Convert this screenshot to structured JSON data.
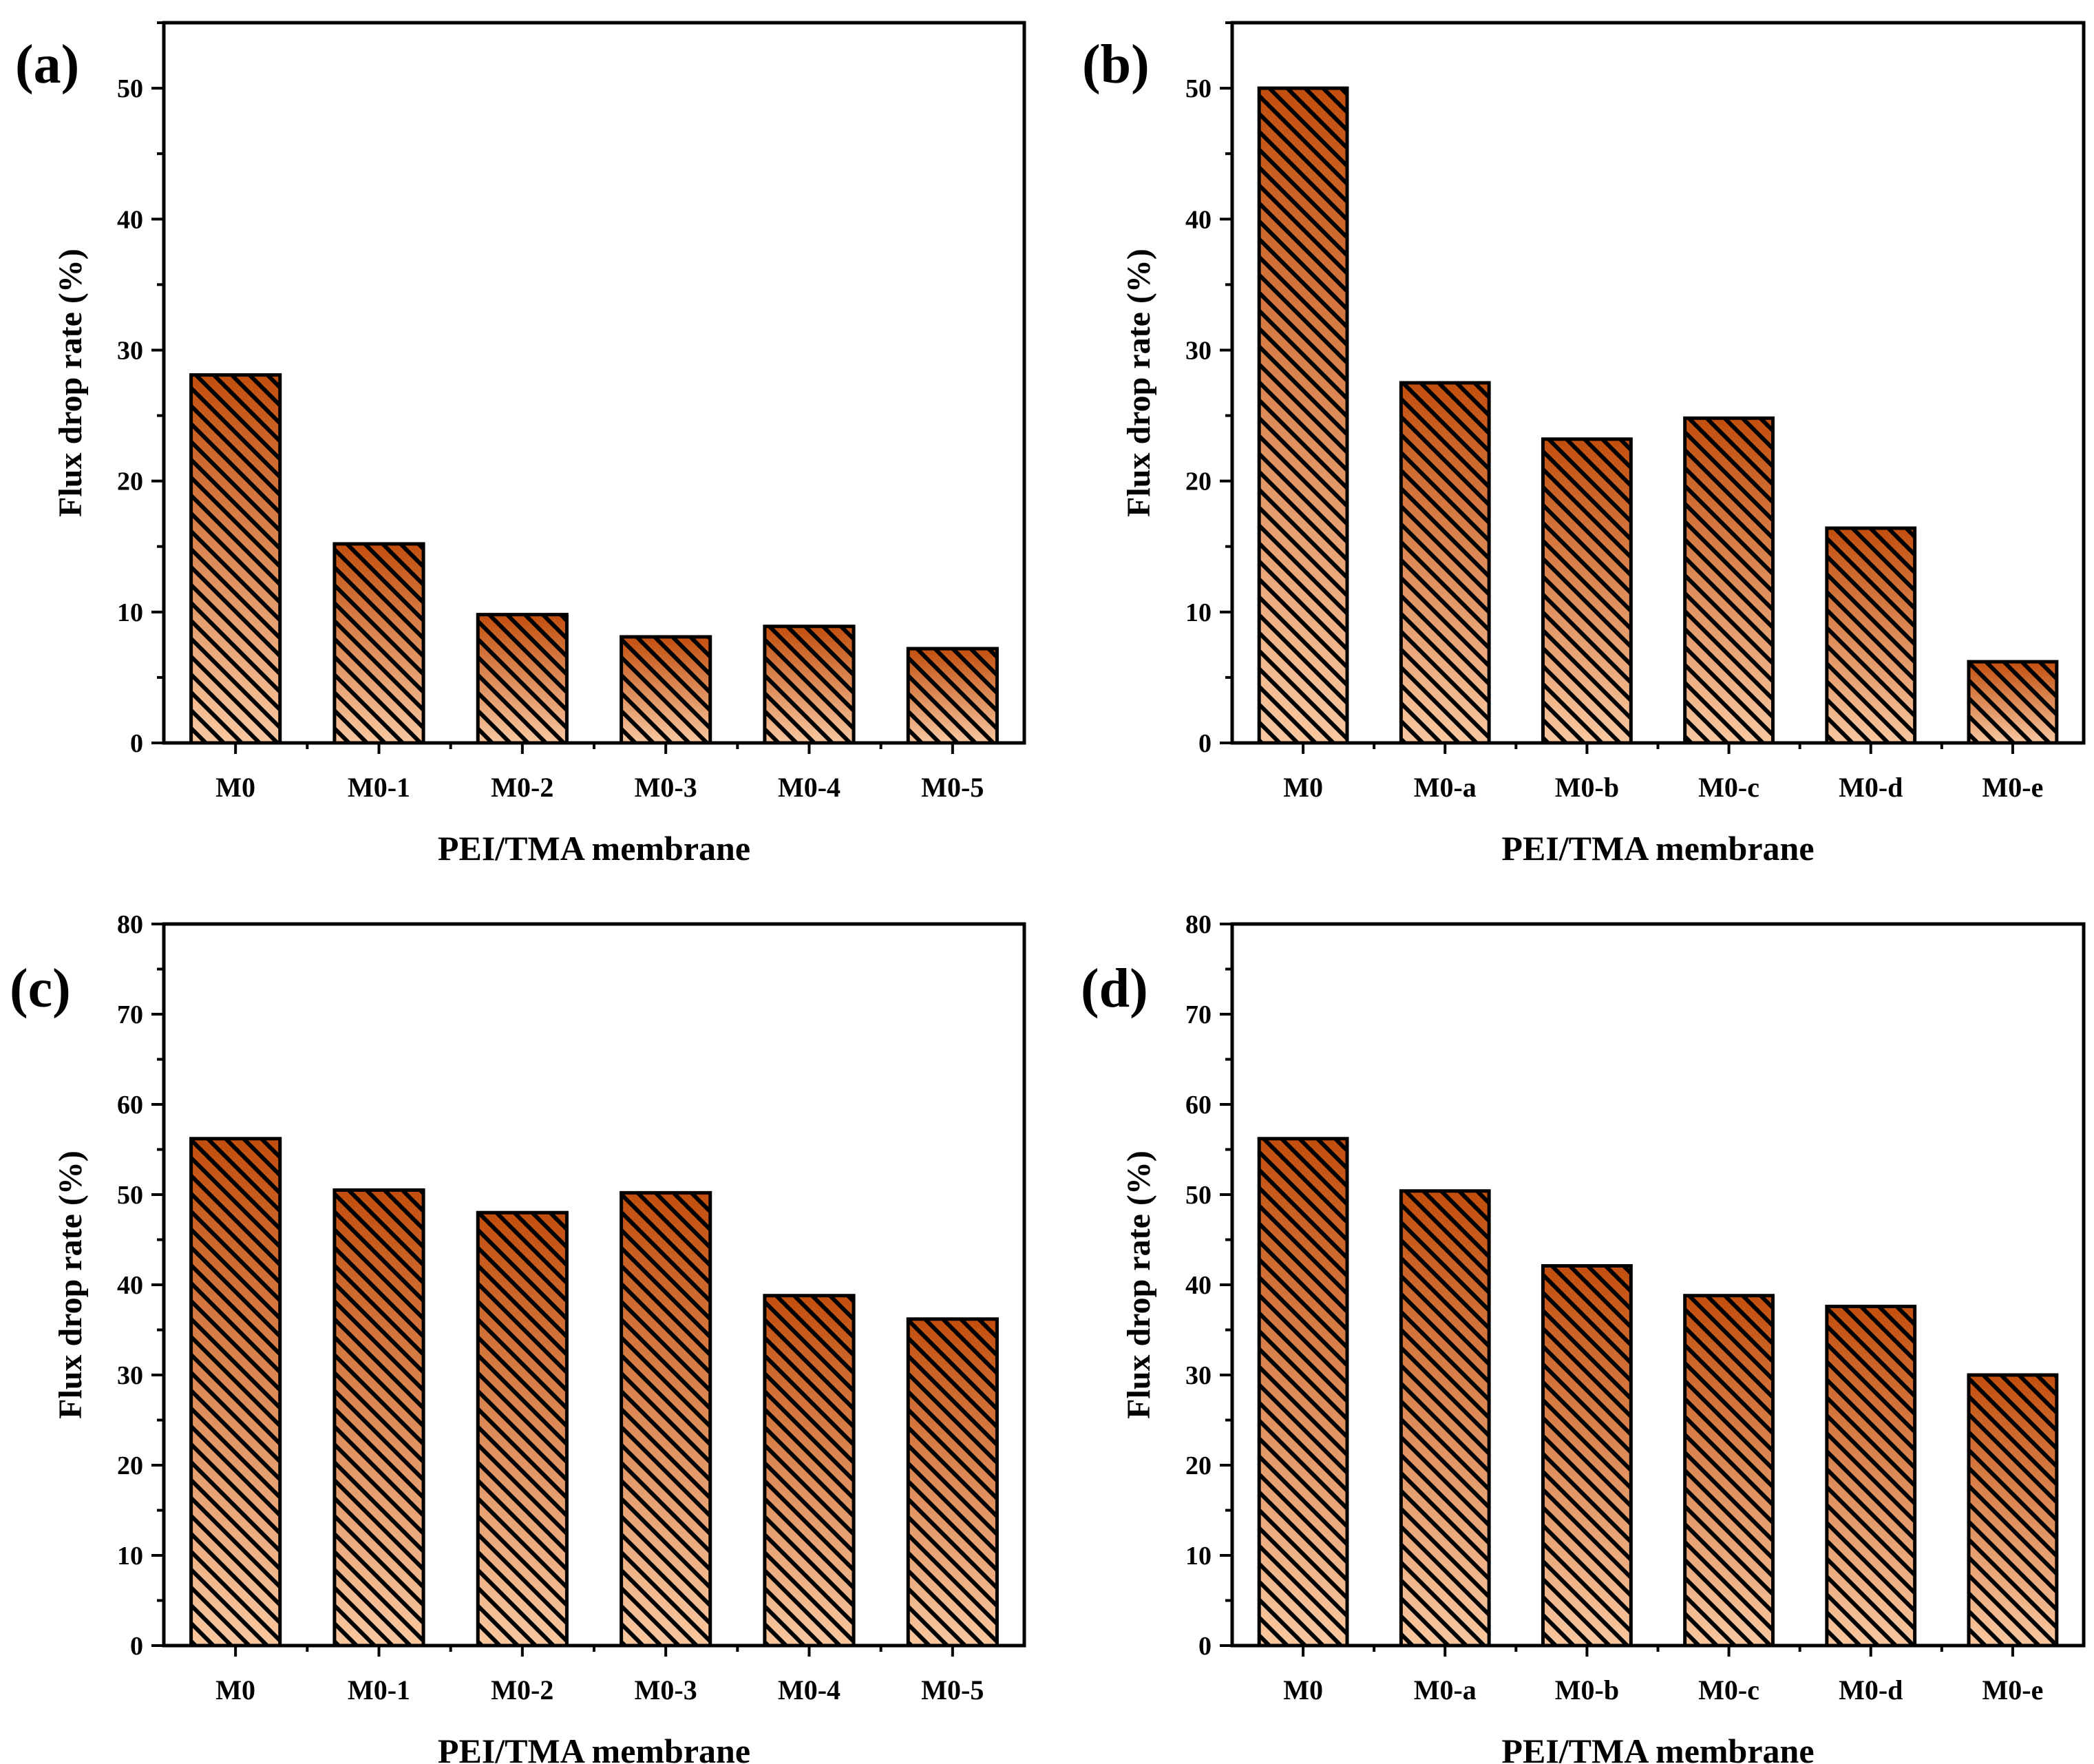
{
  "chart_data": [
    {
      "type": "bar",
      "panel_label": "(a)",
      "categories": [
        "M0",
        "M0-1",
        "M0-2",
        "M0-3",
        "M0-4",
        "M0-5"
      ],
      "values": [
        28.1,
        15.2,
        9.8,
        8.1,
        8.9,
        7.2
      ],
      "xlabel": "PEI/TMA membrane",
      "ylabel": "Flux drop rate (%)",
      "ylim": [
        0,
        55
      ],
      "yticks": [
        0,
        10,
        20,
        30,
        40,
        50
      ]
    },
    {
      "type": "bar",
      "panel_label": "(b)",
      "categories": [
        "M0",
        "M0-a",
        "M0-b",
        "M0-c",
        "M0-d",
        "M0-e"
      ],
      "values": [
        50.0,
        27.5,
        23.2,
        24.8,
        16.4,
        6.2
      ],
      "xlabel": "PEI/TMA membrane",
      "ylabel": "Flux drop rate (%)",
      "ylim": [
        0,
        55
      ],
      "yticks": [
        0,
        10,
        20,
        30,
        40,
        50
      ]
    },
    {
      "type": "bar",
      "panel_label": "(c)",
      "categories": [
        "M0",
        "M0-1",
        "M0-2",
        "M0-3",
        "M0-4",
        "M0-5"
      ],
      "values": [
        56.2,
        50.5,
        48.0,
        50.2,
        38.8,
        36.2
      ],
      "xlabel": "PEI/TMA membrane",
      "ylabel": "Flux drop rate (%)",
      "ylim": [
        0,
        80
      ],
      "yticks": [
        0,
        10,
        20,
        30,
        40,
        50,
        60,
        70,
        80
      ]
    },
    {
      "type": "bar",
      "panel_label": "(d)",
      "categories": [
        "M0",
        "M0-a",
        "M0-b",
        "M0-c",
        "M0-d",
        "M0-e"
      ],
      "values": [
        56.2,
        50.4,
        42.1,
        38.8,
        37.6,
        30.0
      ],
      "xlabel": "PEI/TMA membrane",
      "ylabel": "Flux drop rate (%)",
      "ylim": [
        0,
        80
      ],
      "yticks": [
        0,
        10,
        20,
        30,
        40,
        50,
        60,
        70,
        80
      ]
    }
  ],
  "colors": {
    "bar_top": "#c24e0e",
    "bar_bottom": "#f7c7a0",
    "hatch": "#000000",
    "axis": "#000000"
  }
}
